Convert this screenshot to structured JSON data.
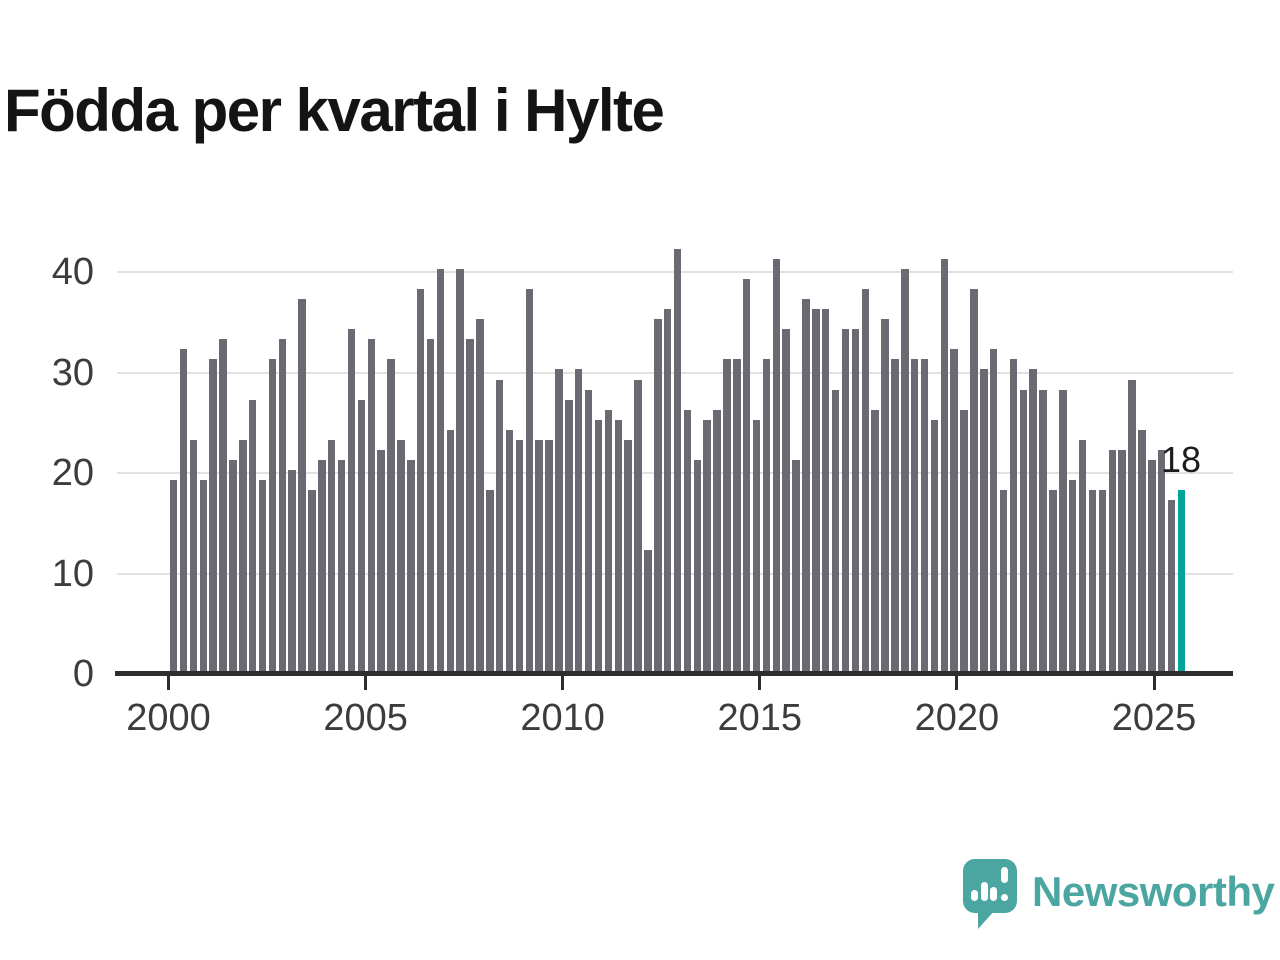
{
  "title": "Födda per kvartal i Hylte",
  "annotation": {
    "last_value_label": "18"
  },
  "y_axis": {
    "tick_labels": [
      "0",
      "10",
      "20",
      "30",
      "40"
    ]
  },
  "x_axis": {
    "tick_labels": [
      "2000",
      "2005",
      "2010",
      "2015",
      "2020",
      "2025"
    ]
  },
  "branding": {
    "name": "Newsworthy",
    "icon": "speech-bubble-bar-chart-logo"
  },
  "colors": {
    "bar": "#6A6A73",
    "highlight": "#00A49B",
    "brand": "#4BA5A0",
    "grid": "#E2E2E2",
    "axis": "#2D2D2D",
    "tick_text": "#3C3C3C",
    "title_text": "#141414"
  },
  "chart_data": {
    "type": "bar",
    "title": "Födda per kvartal i Hylte",
    "ylabel": "",
    "xlabel": "",
    "frequency": "quarterly",
    "start": "2000-Q1",
    "end": "2025-Q3",
    "values": [
      19,
      32,
      23,
      19,
      31,
      33,
      21,
      23,
      27,
      19,
      31,
      33,
      20,
      37,
      18,
      21,
      23,
      21,
      34,
      27,
      33,
      22,
      31,
      23,
      21,
      38,
      33,
      40,
      24,
      40,
      33,
      35,
      18,
      29,
      24,
      23,
      38,
      23,
      23,
      30,
      27,
      30,
      28,
      25,
      26,
      25,
      23,
      29,
      12,
      35,
      36,
      42,
      26,
      21,
      25,
      26,
      31,
      31,
      39,
      25,
      31,
      41,
      34,
      21,
      37,
      36,
      36,
      28,
      34,
      34,
      38,
      26,
      35,
      31,
      40,
      31,
      31,
      25,
      41,
      32,
      26,
      38,
      30,
      32,
      18,
      31,
      28,
      30,
      28,
      18,
      28,
      19,
      23,
      18,
      18,
      22,
      22,
      29,
      24,
      21,
      22,
      17,
      18
    ],
    "highlight_last_bar": true,
    "last_value_label": "18",
    "xticks": [
      2000,
      2005,
      2010,
      2015,
      2020,
      2025
    ],
    "yticks": [
      0,
      10,
      20,
      30,
      40
    ],
    "ylim": [
      0,
      42
    ],
    "grid": "horizontal",
    "legend": "none"
  }
}
